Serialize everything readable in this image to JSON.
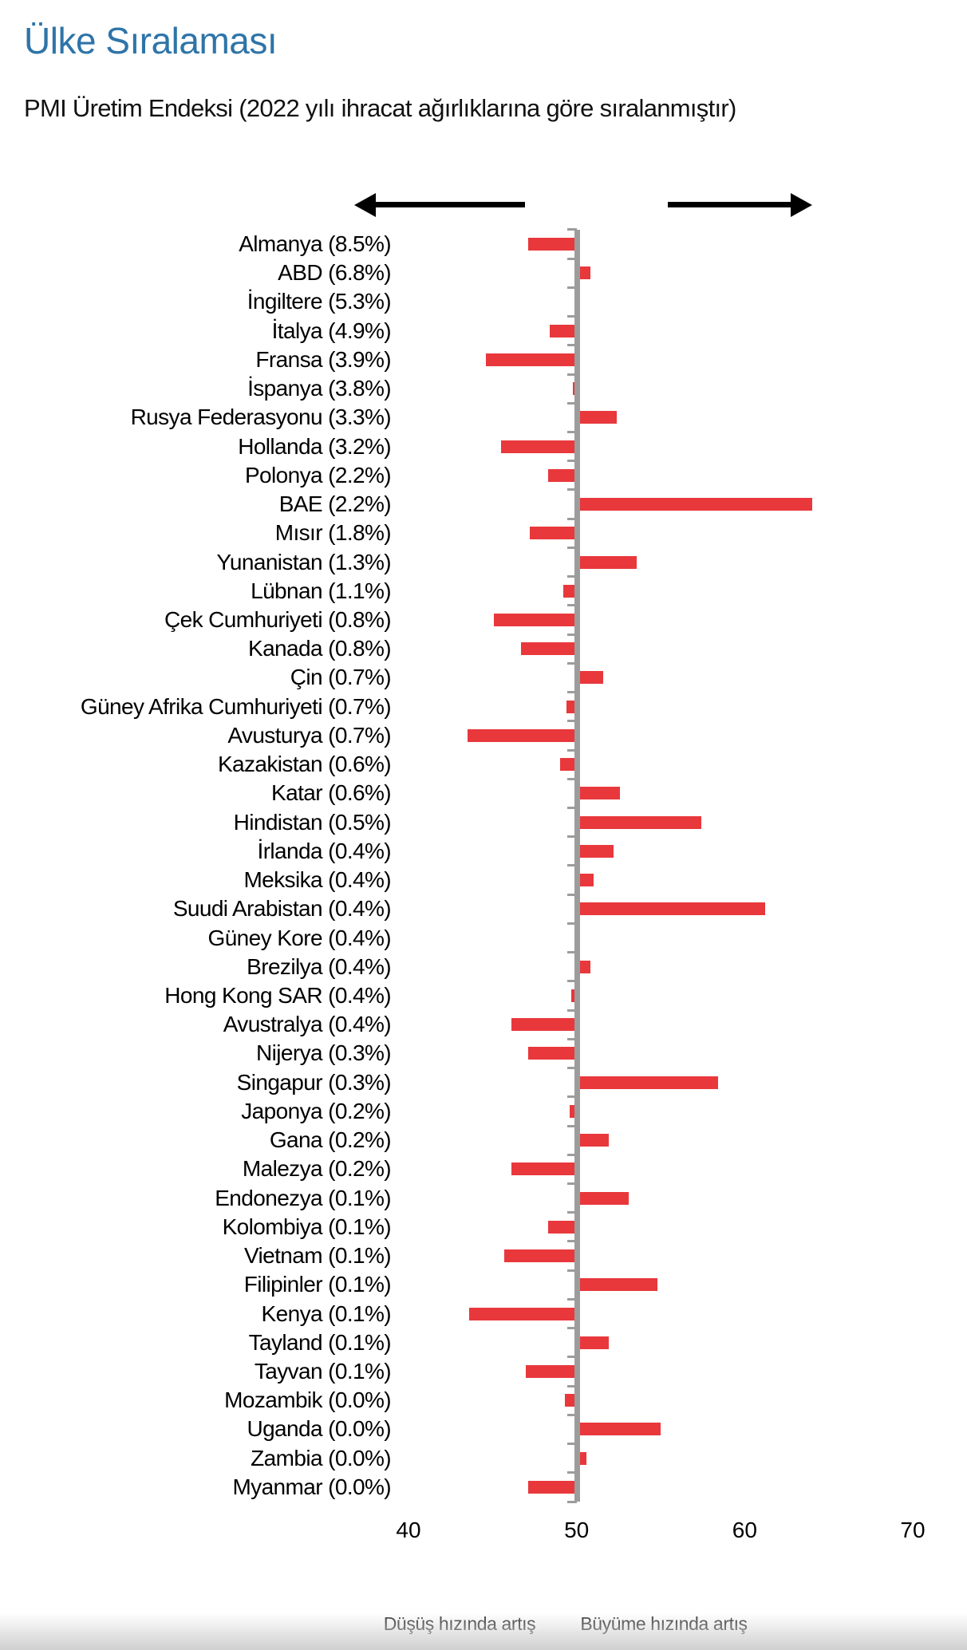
{
  "page": {
    "title": "Ülke Sıralaması",
    "subtitle": "PMI Üretim Endeksi (2022 yılı ihracat ağırlıklarına göre sıralanmıştır)"
  },
  "legend": {
    "left": "Düşüş hızında artış",
    "right": "Büyüme hızında artış"
  },
  "chart_data": {
    "type": "bar",
    "orientation": "horizontal",
    "title": "PMI Üretim Endeksi",
    "baseline": 50,
    "xlim": [
      40,
      70
    ],
    "x_ticks": [
      40,
      50,
      60,
      70
    ],
    "bar_color": "#e8383c",
    "axis_color": "#9c9c9c",
    "categories": [
      "Almanya (8.5%)",
      "ABD (6.8%)",
      "İngiltere (5.3%)",
      "İtalya (4.9%)",
      "Fransa (3.9%)",
      "İspanya (3.8%)",
      "Rusya Federasyonu (3.3%)",
      "Hollanda (3.2%)",
      "Polonya (2.2%)",
      "BAE (2.2%)",
      "Mısır (1.8%)",
      "Yunanistan (1.3%)",
      "Lübnan (1.1%)",
      "Çek Cumhuriyeti (0.8%)",
      "Kanada (0.8%)",
      "Çin (0.7%)",
      "Güney Afrika Cumhuriyeti (0.7%)",
      "Avusturya (0.7%)",
      "Kazakistan (0.6%)",
      "Katar (0.6%)",
      "Hindistan (0.5%)",
      "İrlanda (0.4%)",
      "Meksika (0.4%)",
      "Suudi Arabistan (0.4%)",
      "Güney Kore (0.4%)",
      "Brezilya (0.4%)",
      "Hong Kong SAR (0.4%)",
      "Avustralya (0.4%)",
      "Nijerya (0.3%)",
      "Singapur (0.3%)",
      "Japonya (0.2%)",
      "Gana (0.2%)",
      "Malezya (0.2%)",
      "Endonezya (0.1%)",
      "Kolombiya (0.1%)",
      "Vietnam (0.1%)",
      "Filipinler (0.1%)",
      "Kenya (0.1%)",
      "Tayland (0.1%)",
      "Tayvan (0.1%)",
      "Mozambik (0.0%)",
      "Uganda (0.0%)",
      "Zambia (0.0%)",
      "Myanmar (0.0%)"
    ],
    "values": [
      47.1,
      50.8,
      50.2,
      48.4,
      44.6,
      49.8,
      52.4,
      45.5,
      48.3,
      64.0,
      47.2,
      53.6,
      49.2,
      45.1,
      46.7,
      51.6,
      49.4,
      43.5,
      49.0,
      52.6,
      57.4,
      52.2,
      51.0,
      61.2,
      49.9,
      50.8,
      49.7,
      46.1,
      47.1,
      58.4,
      49.6,
      51.9,
      46.1,
      53.1,
      48.3,
      45.7,
      54.8,
      43.6,
      51.9,
      47.0,
      49.3,
      55.0,
      50.6,
      47.1
    ]
  }
}
